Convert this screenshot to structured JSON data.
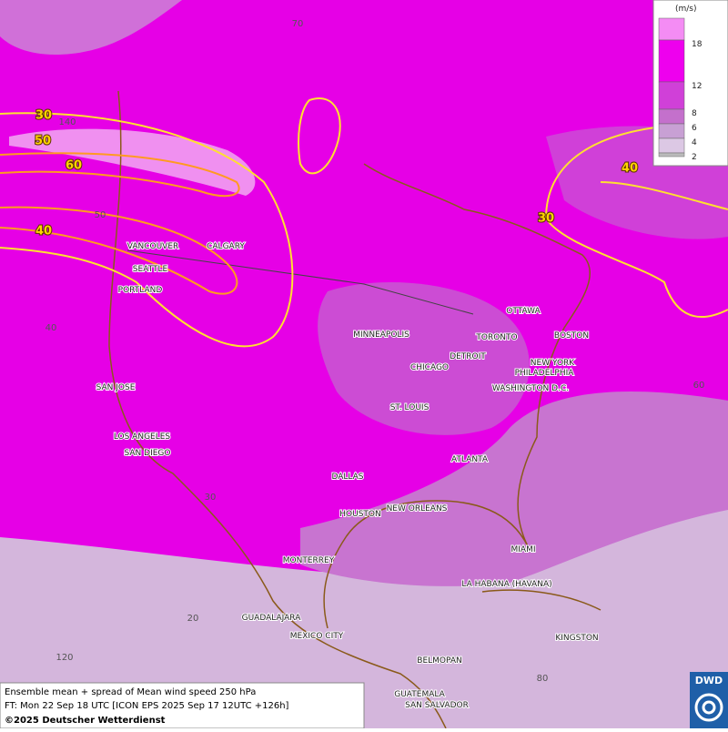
{
  "legend": {
    "unit": "(m/s)",
    "ticks": [
      18,
      12,
      8,
      6,
      4,
      2
    ]
  },
  "cities": [
    "VANCOUVER",
    "CALGARY",
    "SEATTLE",
    "PORTLAND",
    "SAN JOSE",
    "LOS ANGELES",
    "SAN DIEGO",
    "MINNEAPOLIS",
    "TORONTO",
    "OTTAWA",
    "BOSTON",
    "DETROIT",
    "CHICAGO",
    "NEW YORK",
    "PHILADELPHIA",
    "WASHINGTON D.C.",
    "ST. LOUIS",
    "ATLANTA",
    "DALLAS",
    "HOUSTON",
    "NEW ORLEANS",
    "MIAMI",
    "MONTERREY",
    "LA HABANA (HAVANA)",
    "GUADALAJARA",
    "MEXICO CITY",
    "KINGSTON",
    "BELMOPAN",
    "GUATEMALA",
    "SAN SALVADOR"
  ],
  "grid_labels": [
    70,
    140,
    50,
    40,
    60,
    30,
    20,
    120,
    80
  ],
  "contour_labels": [
    30,
    50,
    60,
    40,
    40,
    30
  ],
  "footer": {
    "line1": "Ensemble mean + spread of Mean wind speed 250 hPa",
    "line2": "FT: Mon 22 Sep 18 UTC [ICON EPS 2025 Sep 17 12UTC +126h]",
    "copyright": "©2025 Deutscher Wetterdienst"
  },
  "logo": "DWD"
}
